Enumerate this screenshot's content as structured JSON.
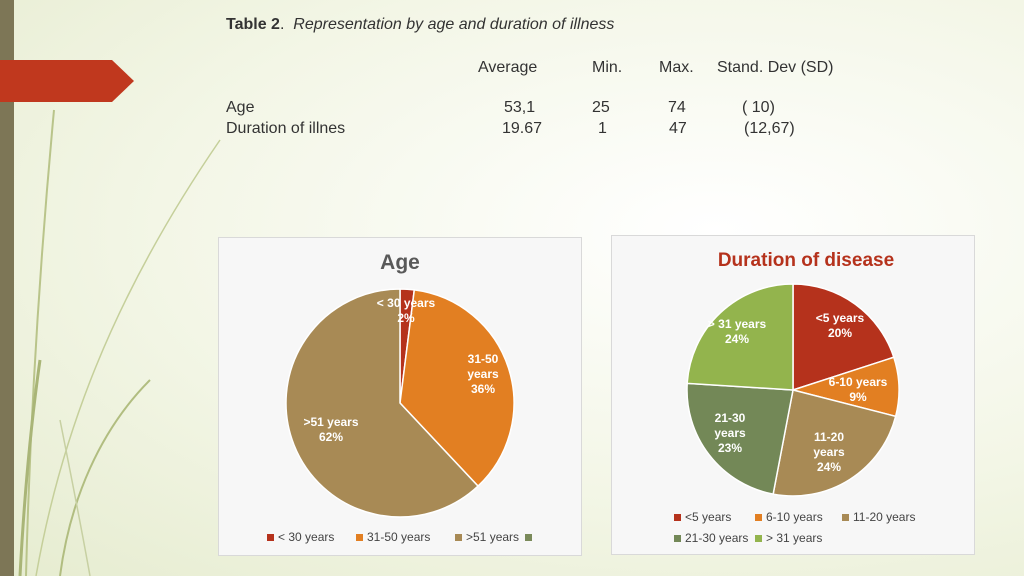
{
  "caption": {
    "prefix": "Table 2",
    "dot": ".",
    "text": "Representation by age and duration of illness"
  },
  "table": {
    "headers": [
      "Average",
      "Min.",
      "Max.",
      "Stand. Dev (SD)"
    ],
    "rows": [
      {
        "label": "Age",
        "values": [
          "53,1",
          "25",
          "74",
          "( 10)"
        ]
      },
      {
        "label": "Duration of illnes",
        "values": [
          "19.67",
          "1",
          "47",
          "(12,67)"
        ]
      }
    ]
  },
  "chart_data": [
    {
      "type": "pie",
      "title": "Age",
      "series": [
        {
          "name": "< 30 years",
          "value": 2,
          "label_lines": [
            "< 30 years",
            "2%"
          ],
          "color": "#b5321c"
        },
        {
          "name": "31-50 years",
          "value": 36,
          "label_lines": [
            "31-50",
            "years",
            "36%"
          ],
          "color": "#e27f22"
        },
        {
          "name": ">51 years",
          "value": 62,
          "label_lines": [
            ">51 years",
            "62%"
          ],
          "color": "#a88a55"
        },
        {
          "name": "",
          "value": 0,
          "label_lines": [],
          "color": "#7a8a5a"
        }
      ],
      "legend_position": "bottom"
    },
    {
      "type": "pie",
      "title": "Duration of disease",
      "series": [
        {
          "name": "<5 years",
          "value": 20,
          "label_lines": [
            "<5 years",
            "20%"
          ],
          "color": "#b5321c"
        },
        {
          "name": "6-10 years",
          "value": 9,
          "label_lines": [
            "6-10 years",
            "9%"
          ],
          "color": "#e27f22"
        },
        {
          "name": "11-20 years",
          "value": 24,
          "label_lines": [
            "11-20",
            "years",
            "24%"
          ],
          "color": "#a88a55"
        },
        {
          "name": "21-30 years",
          "value": 23,
          "label_lines": [
            "21-30",
            "years",
            "23%"
          ],
          "color": "#738857"
        },
        {
          "name": "> 31 years",
          "value": 24,
          "label_lines": [
            "> 31 years",
            "24%"
          ],
          "color": "#93b44d"
        }
      ],
      "legend_position": "bottom"
    }
  ]
}
